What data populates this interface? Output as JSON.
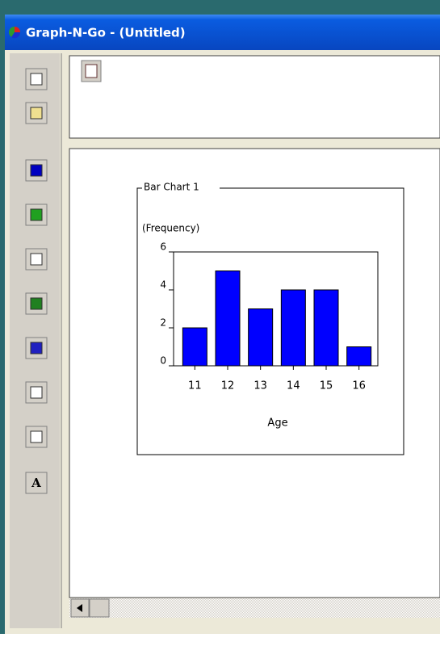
{
  "window": {
    "title": "Graph-N-Go - (Untitled)"
  },
  "toolbar": {
    "text_button": "A"
  },
  "chart_data": {
    "type": "bar",
    "title": "Bar Chart 1",
    "y_label": "(Frequency)",
    "x_label": "Age",
    "categories": [
      "11",
      "12",
      "13",
      "14",
      "15",
      "16"
    ],
    "values": [
      2,
      5,
      3,
      4,
      4,
      1
    ],
    "color": "#0000ff",
    "ylim": [
      0,
      6
    ],
    "yticks": [
      0,
      2,
      4,
      6
    ]
  }
}
